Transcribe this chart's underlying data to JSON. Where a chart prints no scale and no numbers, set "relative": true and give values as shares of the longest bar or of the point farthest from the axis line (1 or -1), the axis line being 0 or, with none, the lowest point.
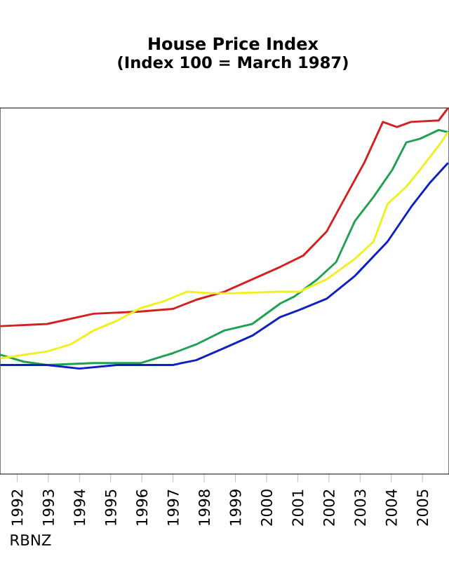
{
  "chart_data": {
    "type": "line",
    "title": "House Price Index",
    "subtitle": "(Index 100 = March 1987)",
    "relative": true,
    "xlim": [
      1991.45,
      2005.85
    ],
    "xticks": [
      1992,
      1993,
      1994,
      1995,
      1996,
      1997,
      1998,
      1999,
      2000,
      2001,
      2002,
      2003,
      2004,
      2005
    ],
    "annotations": [
      "RBNZ"
    ],
    "series": [
      {
        "color": "#d42020",
        "x": [
          1991.46,
          1992.96,
          1994.45,
          1995.95,
          1996.99,
          1997.74,
          1998.64,
          1999.54,
          2000.44,
          2001.18,
          2001.93,
          2002.53,
          2003.13,
          2003.73,
          2004.18,
          2004.63,
          2005.52,
          2005.82
        ],
        "values": [
          0.404,
          0.41,
          0.438,
          0.444,
          0.451,
          0.476,
          0.498,
          0.532,
          0.566,
          0.597,
          0.663,
          0.757,
          0.85,
          0.962,
          0.948,
          0.962,
          0.966,
          1
        ]
      },
      {
        "color": "#20a050",
        "x": [
          1991.46,
          1992.21,
          1992.96,
          1994.45,
          1995.95,
          1996.99,
          1997.74,
          1998.64,
          1999.54,
          2000.44,
          2000.89,
          2001.63,
          2002.23,
          2002.83,
          2003.43,
          2004.03,
          2004.48,
          2004.92,
          2005.52,
          2005.82
        ],
        "values": [
          0.326,
          0.307,
          0.298,
          0.303,
          0.303,
          0.33,
          0.354,
          0.392,
          0.41,
          0.466,
          0.485,
          0.532,
          0.579,
          0.691,
          0.757,
          0.831,
          0.906,
          0.916,
          0.94,
          0.934
        ]
      },
      {
        "color": "#f0f020",
        "x": [
          1991.46,
          1992.96,
          1993.71,
          1994.45,
          1995.2,
          1995.95,
          1996.7,
          1997.44,
          1998.19,
          1998.94,
          2000.44,
          2001.04,
          2001.93,
          2002.83,
          2003.43,
          2003.88,
          2004.48,
          2004.92,
          2005.52,
          2005.82
        ],
        "values": [
          0.316,
          0.335,
          0.354,
          0.392,
          0.419,
          0.453,
          0.472,
          0.498,
          0.494,
          0.494,
          0.498,
          0.498,
          0.532,
          0.588,
          0.635,
          0.738,
          0.785,
          0.831,
          0.897,
          0.934
        ]
      },
      {
        "color": "#1020c0",
        "x": [
          1991.46,
          1992.96,
          1994.0,
          1995.2,
          1996.99,
          1997.74,
          1998.64,
          1999.54,
          2000.44,
          2001.04,
          2001.93,
          2002.83,
          2003.88,
          2004.63,
          2005.22,
          2005.82
        ],
        "values": [
          0.298,
          0.298,
          0.288,
          0.298,
          0.298,
          0.311,
          0.344,
          0.378,
          0.429,
          0.448,
          0.479,
          0.541,
          0.635,
          0.729,
          0.794,
          0.85
        ]
      }
    ]
  }
}
